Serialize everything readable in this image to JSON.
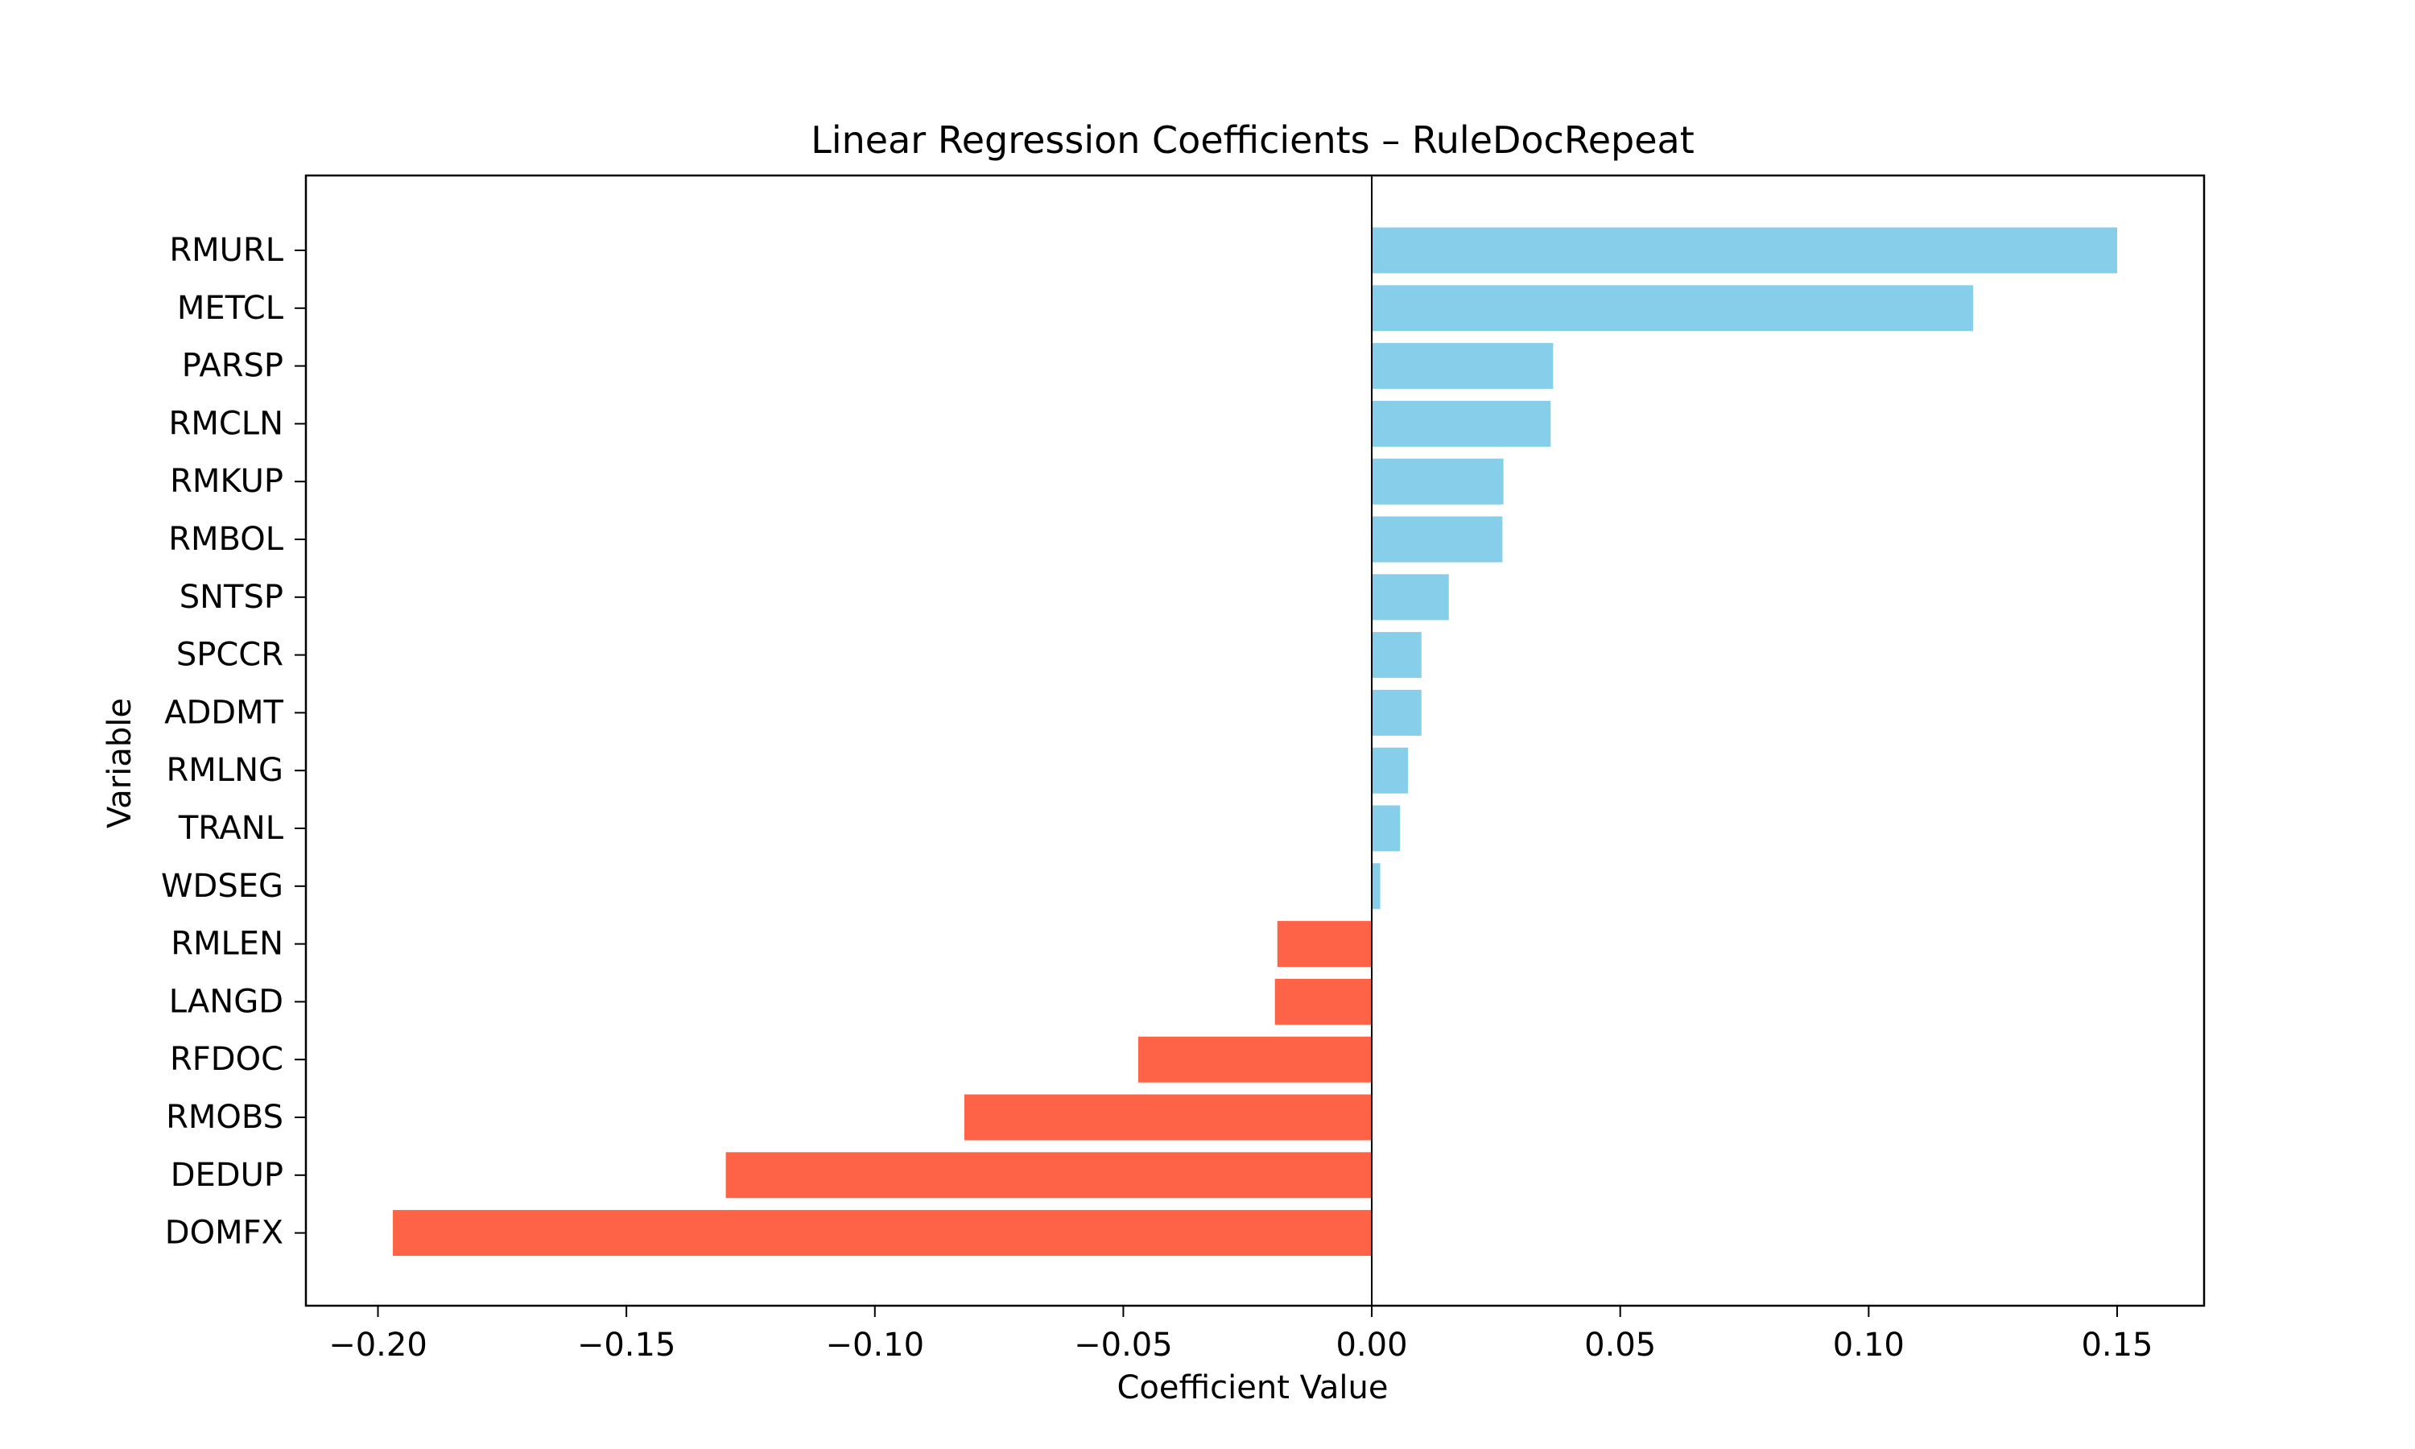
{
  "chart_data": {
    "type": "bar",
    "orientation": "horizontal",
    "title": "Linear Regression Coefficients – RuleDocRepeat",
    "xlabel": "Coefficient Value",
    "ylabel": "Variable",
    "categories": [
      "RMURL",
      "METCL",
      "PARSP",
      "RMCLN",
      "RMKUP",
      "RMBOL",
      "SNTSP",
      "SPCCR",
      "ADDMT",
      "RMLNG",
      "TRANL",
      "WDSEG",
      "RMLEN",
      "LANGD",
      "RFDOC",
      "RMOBS",
      "DEDUP",
      "DOMFX"
    ],
    "values": [
      0.15,
      0.121,
      0.0365,
      0.036,
      0.0265,
      0.0263,
      0.0155,
      0.01,
      0.01,
      0.0073,
      0.0057,
      0.0017,
      -0.019,
      -0.0195,
      -0.047,
      -0.082,
      -0.13,
      -0.197
    ],
    "xticks": [
      -0.2,
      -0.15,
      -0.1,
      -0.05,
      0.0,
      0.05,
      0.1,
      0.15
    ],
    "xtick_labels": [
      "−0.20",
      "−0.15",
      "−0.10",
      "−0.05",
      "0.00",
      "0.05",
      "0.10",
      "0.15"
    ],
    "xlim": [
      -0.2145,
      0.1675
    ],
    "zero_line": true,
    "grid": false,
    "legend": "none",
    "colors": {
      "positive": "#87CEEB",
      "negative": "#FF6347",
      "axis": "#000000"
    }
  }
}
